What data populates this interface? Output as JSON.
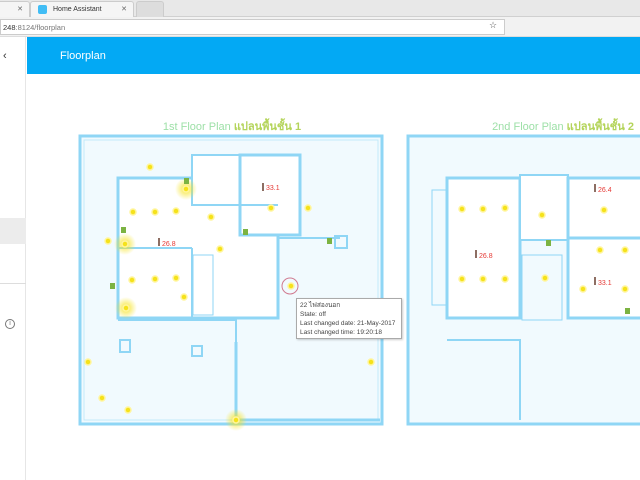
{
  "browser": {
    "tab_title": "Home Assistant",
    "url_host": "248",
    "url_path": ":8124/floorplan"
  },
  "header": {
    "title": "Floorplan"
  },
  "floors": [
    {
      "title_en": "1st Floor Plan",
      "title_th": "แปลนพื้นชั้น 1",
      "temps": [
        "33.1",
        "26.8"
      ]
    },
    {
      "title_en": "2nd Floor Plan",
      "title_th": "แปลนพื้นชั้น 2",
      "temps": [
        "26.4",
        "26.8",
        "33.1"
      ]
    }
  ],
  "tooltip": {
    "name": "22 ไฟส่องนอก",
    "state": "State: off",
    "date": "Last changed date: 21-May-2017",
    "time": "Last changed time: 19:20:18"
  },
  "colors": {
    "accent": "#03a9f4",
    "wall": "#8fd6f5",
    "light_on": "#f5e21b",
    "temp": "#e53935"
  }
}
